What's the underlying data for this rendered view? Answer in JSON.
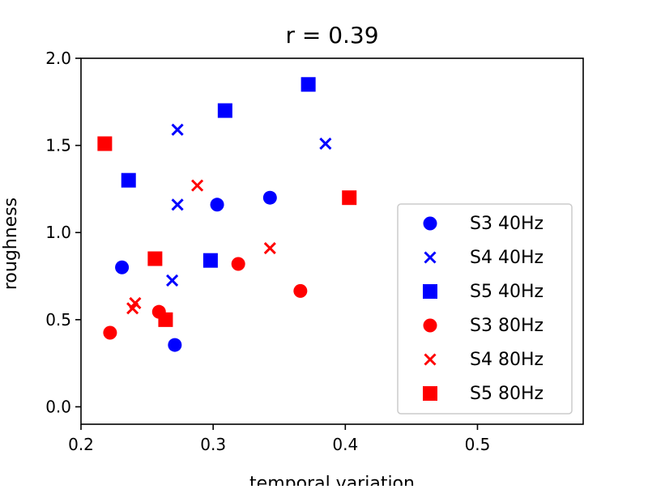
{
  "chart_data": {
    "type": "scatter",
    "title": "r = 0.39",
    "xlabel": "temporal variation",
    "ylabel": "roughness",
    "xlim": [
      0.2,
      0.58
    ],
    "ylim": [
      -0.1,
      2.0
    ],
    "xticks": [
      0.2,
      0.3,
      0.4,
      0.5
    ],
    "xtick_labels": [
      "0.2",
      "0.3",
      "0.4",
      "0.5"
    ],
    "yticks": [
      0.0,
      0.5,
      1.0,
      1.5,
      2.0
    ],
    "ytick_labels": [
      "0.0",
      "0.5",
      "1.0",
      "1.5",
      "2.0"
    ],
    "grid": false,
    "legend_position": "lower-right",
    "series": [
      {
        "name": "S3 40Hz",
        "color": "#0000ff",
        "marker": "circle",
        "points": [
          [
            0.231,
            0.8
          ],
          [
            0.271,
            0.355
          ],
          [
            0.303,
            1.16
          ],
          [
            0.343,
            1.2
          ]
        ]
      },
      {
        "name": "S4 40Hz",
        "color": "#0000ff",
        "marker": "x",
        "points": [
          [
            0.273,
            1.59
          ],
          [
            0.273,
            1.16
          ],
          [
            0.269,
            0.725
          ],
          [
            0.385,
            1.51
          ]
        ]
      },
      {
        "name": "S5 40Hz",
        "color": "#0000ff",
        "marker": "square",
        "points": [
          [
            0.236,
            1.3
          ],
          [
            0.309,
            1.7
          ],
          [
            0.298,
            0.84
          ],
          [
            0.372,
            1.85
          ]
        ]
      },
      {
        "name": "S3 80Hz",
        "color": "#ff0000",
        "marker": "circle",
        "points": [
          [
            0.222,
            0.425
          ],
          [
            0.259,
            0.545
          ],
          [
            0.319,
            0.82
          ],
          [
            0.366,
            0.665
          ]
        ]
      },
      {
        "name": "S4 80Hz",
        "color": "#ff0000",
        "marker": "x",
        "points": [
          [
            0.288,
            1.27
          ],
          [
            0.343,
            0.91
          ],
          [
            0.241,
            0.595
          ],
          [
            0.239,
            0.565
          ]
        ]
      },
      {
        "name": "S5 80Hz",
        "color": "#ff0000",
        "marker": "square",
        "points": [
          [
            0.218,
            1.51
          ],
          [
            0.256,
            0.85
          ],
          [
            0.264,
            0.5
          ],
          [
            0.403,
            1.2
          ]
        ]
      }
    ]
  }
}
